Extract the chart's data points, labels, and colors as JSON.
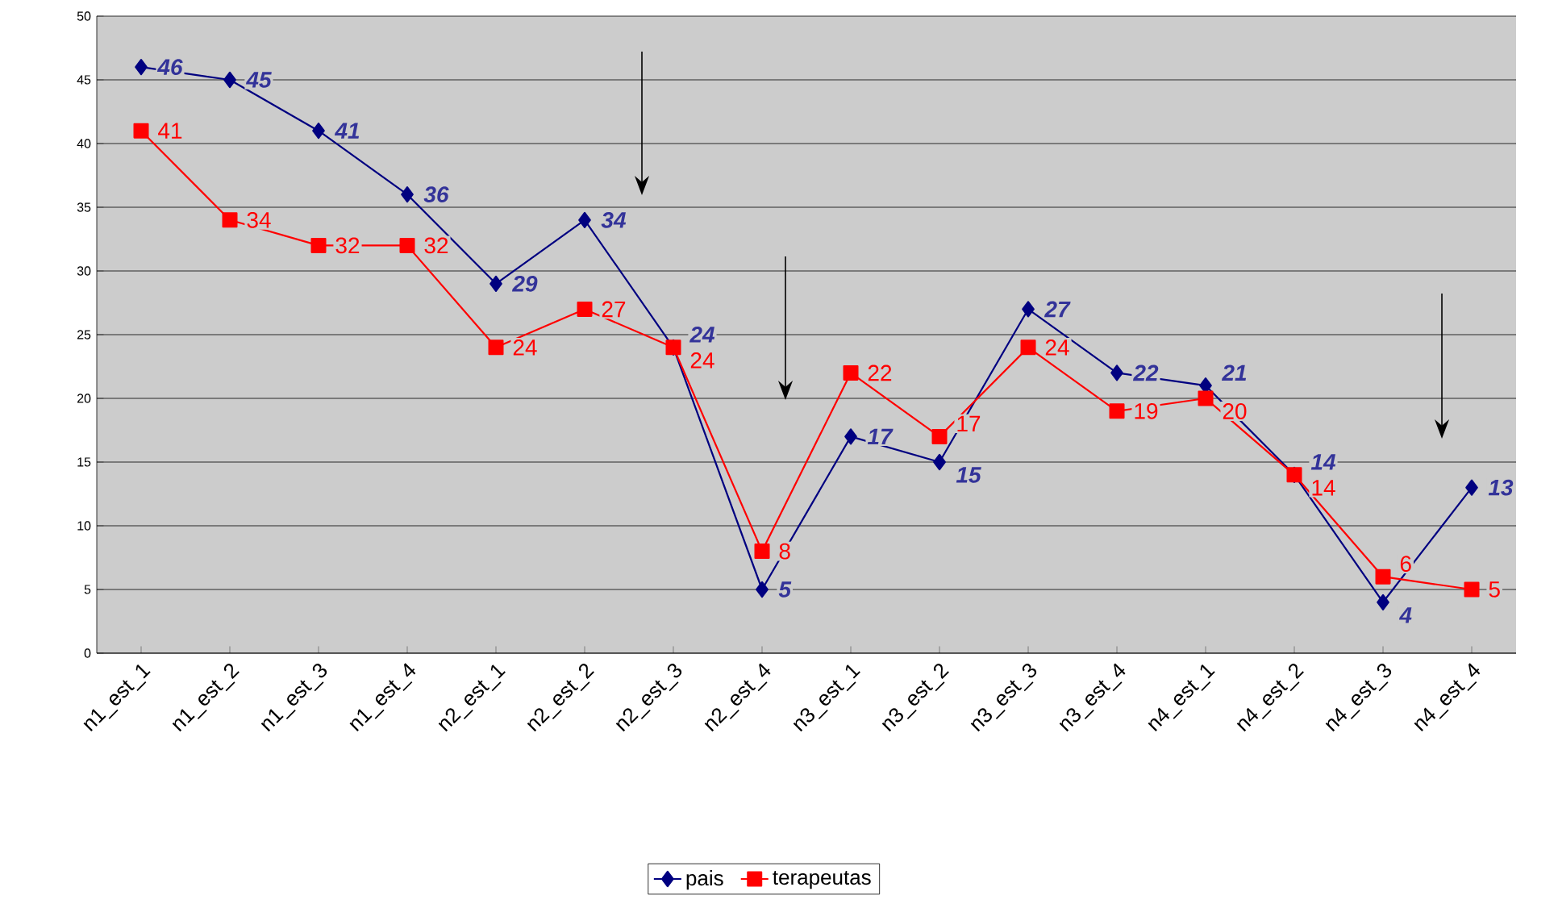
{
  "chart_data": {
    "type": "line",
    "categories": [
      "n1_est_1",
      "n1_est_2",
      "n1_est_3",
      "n1_est_4",
      "n2_est_1",
      "n2_est_2",
      "n2_est_3",
      "n2_est_4",
      "n3_est_1",
      "n3_est_2",
      "n3_est_3",
      "n3_est_4",
      "n4_est_1",
      "n4_est_2",
      "n4_est_3",
      "n4_est_4"
    ],
    "series": [
      {
        "name": "pais",
        "color": "#000080",
        "marker": "diamond",
        "values": [
          46,
          45,
          41,
          36,
          29,
          34,
          24,
          5,
          17,
          15,
          27,
          22,
          21,
          14,
          4,
          13
        ]
      },
      {
        "name": "terapeutas",
        "color": "#ff0000",
        "marker": "square",
        "values": [
          41,
          34,
          32,
          32,
          24,
          27,
          24,
          8,
          22,
          17,
          24,
          19,
          20,
          14,
          6,
          5
        ]
      }
    ],
    "ylim": [
      0,
      50
    ],
    "yticks": [
      0,
      5,
      10,
      15,
      20,
      25,
      30,
      35,
      40,
      45,
      50
    ],
    "grid": "y",
    "legend": "bottom",
    "data_labels": true
  }
}
